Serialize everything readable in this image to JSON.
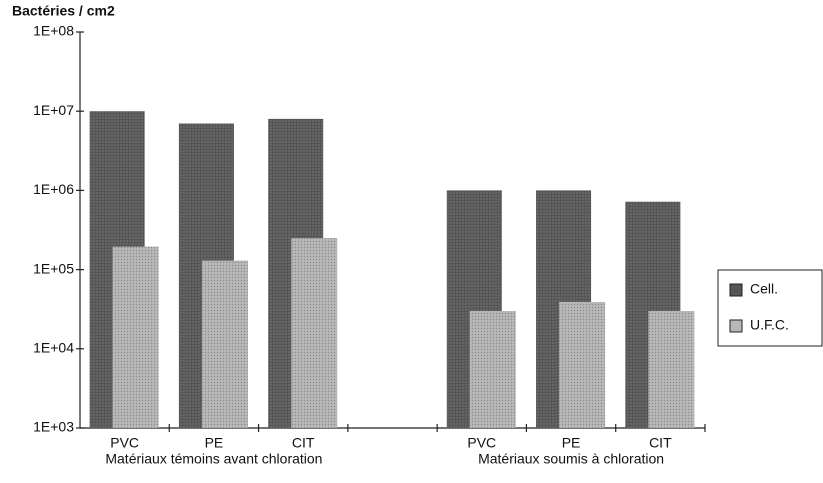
{
  "chart_data": {
    "type": "bar",
    "y_axis_title": "Bactéries / cm2",
    "categories": [
      "PVC",
      "PE",
      "CIT",
      null,
      "PVC",
      "PE",
      "CIT"
    ],
    "group_labels": [
      {
        "label": "Matériaux témoins avant chloration",
        "span": [
          0,
          2
        ]
      },
      {
        "label": "Matériaux soumis à chloration",
        "span": [
          4,
          6
        ]
      }
    ],
    "series": [
      {
        "name": "Cell.",
        "color": "#555555",
        "values": [
          10000000,
          7000000,
          8000000,
          null,
          1000000,
          1000000,
          720000
        ]
      },
      {
        "name": "U.F.C.",
        "color": "#b8b8b8",
        "values": [
          195000,
          130000,
          250000,
          null,
          30000,
          39000,
          30000
        ]
      }
    ],
    "ylim": [
      1000,
      100000000
    ],
    "yticks": [
      {
        "value": 1000,
        "label": "1E+03"
      },
      {
        "value": 10000,
        "label": "1E+04"
      },
      {
        "value": 100000,
        "label": "1E+05"
      },
      {
        "value": 1000000,
        "label": "1E+06"
      },
      {
        "value": 10000000,
        "label": "1E+07"
      },
      {
        "value": 100000000,
        "label": "1E+08"
      }
    ],
    "log_scale": true,
    "grid": false,
    "legend": "right"
  }
}
